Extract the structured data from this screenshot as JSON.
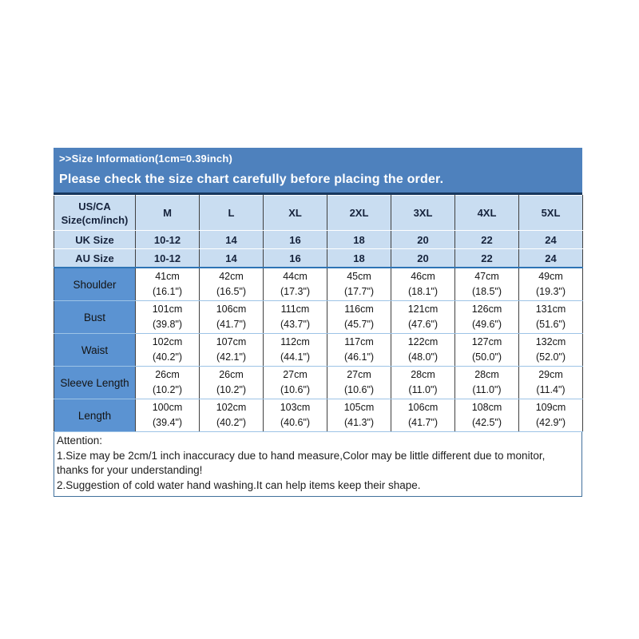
{
  "banner": {
    "line1": ">>Size Information(1cm=0.39inch)",
    "line2": "Please check the size chart carefully before placing the order."
  },
  "table": {
    "corner_line1": "US/CA",
    "corner_line2": "Size(cm/inch)",
    "sizes": [
      "M",
      "L",
      "XL",
      "2XL",
      "3XL",
      "4XL",
      "5XL"
    ],
    "size_rows": [
      {
        "label": "UK Size",
        "values": [
          "10-12",
          "14",
          "16",
          "18",
          "20",
          "22",
          "24"
        ]
      },
      {
        "label": "AU Size",
        "values": [
          "10-12",
          "14",
          "16",
          "18",
          "20",
          "22",
          "24"
        ]
      }
    ],
    "measure_rows": [
      {
        "label": "Shoulder",
        "cm": [
          "41cm",
          "42cm",
          "44cm",
          "45cm",
          "46cm",
          "47cm",
          "49cm"
        ],
        "inch": [
          "(16.1\")",
          "(16.5\")",
          "(17.3\")",
          "(17.7\")",
          "(18.1\")",
          "(18.5\")",
          "(19.3\")"
        ]
      },
      {
        "label": "Bust",
        "cm": [
          "101cm",
          "106cm",
          "111cm",
          "116cm",
          "121cm",
          "126cm",
          "131cm"
        ],
        "inch": [
          "(39.8\")",
          "(41.7\")",
          "(43.7\")",
          "(45.7\")",
          "(47.6\")",
          "(49.6\")",
          "(51.6\")"
        ]
      },
      {
        "label": "Waist",
        "cm": [
          "102cm",
          "107cm",
          "112cm",
          "117cm",
          "122cm",
          "127cm",
          "132cm"
        ],
        "inch": [
          "(40.2\")",
          "(42.1\")",
          "(44.1\")",
          "(46.1\")",
          "(48.0\")",
          "(50.0\")",
          "(52.0\")"
        ]
      },
      {
        "label": "Sleeve Length",
        "cm": [
          "26cm",
          "26cm",
          "27cm",
          "27cm",
          "28cm",
          "28cm",
          "29cm"
        ],
        "inch": [
          "(10.2\")",
          "(10.2\")",
          "(10.6\")",
          "(10.6\")",
          "(11.0\")",
          "(11.0\")",
          "(11.4\")"
        ]
      },
      {
        "label": "Length",
        "cm": [
          "100cm",
          "102cm",
          "103cm",
          "105cm",
          "106cm",
          "108cm",
          "109cm"
        ],
        "inch": [
          "(39.4\")",
          "(40.2\")",
          "(40.6\")",
          "(41.3\")",
          "(41.7\")",
          "(42.5\")",
          "(42.9\")"
        ]
      }
    ]
  },
  "attention": {
    "title": "Attention:",
    "note1": "1.Size may be 2cm/1 inch inaccuracy due to hand measure,Color may be little different due to monitor, thanks for your understanding!",
    "note2": "2.Suggestion of cold water hand washing.It can help items keep their shape."
  },
  "colors": {
    "banner_bg": "#4e81bd",
    "header_bg": "#c9ddf1",
    "row_label_bg": "#5b93d2",
    "grid_dark": "#404040",
    "grid_light_blue": "#9dc3e6",
    "banner_separator": "#17375e",
    "outer_border": "#41719c"
  }
}
